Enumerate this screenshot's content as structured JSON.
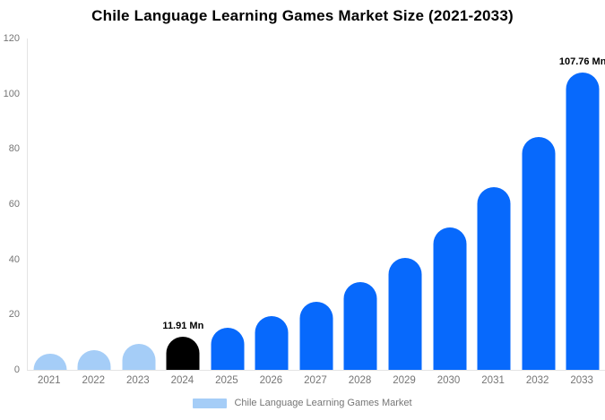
{
  "chart_data": {
    "type": "bar",
    "title": "Chile Language Learning Games Market Size (2021-2033)",
    "categories": [
      "2021",
      "2022",
      "2023",
      "2024",
      "2025",
      "2026",
      "2027",
      "2028",
      "2029",
      "2030",
      "2031",
      "2032",
      "2033"
    ],
    "values": [
      5.71,
      7.3,
      9.32,
      11.91,
      15.21,
      19.43,
      24.82,
      31.7,
      40.49,
      51.72,
      66.06,
      84.37,
      107.76
    ],
    "bar_colors": [
      "#a5cdf7",
      "#a5cdf7",
      "#a5cdf7",
      "#000000",
      "#0769fc",
      "#0769fc",
      "#0769fc",
      "#0769fc",
      "#0769fc",
      "#0769fc",
      "#0769fc",
      "#0769fc",
      "#0769fc"
    ],
    "annotations": [
      {
        "category_index": 3,
        "label": "11.91 Mn"
      },
      {
        "category_index": 12,
        "label": "107.76 Mn"
      }
    ],
    "xlabel": "",
    "ylabel": "",
    "ylim": [
      0,
      120
    ],
    "yticks": [
      0,
      20,
      40,
      60,
      80,
      100,
      120
    ],
    "grid": false,
    "legend": [
      "Chile Language Learning Games Market"
    ],
    "legend_position": "bottom"
  },
  "colors": {
    "bar_default": "#0769fc",
    "bar_early_years": "#a5cdf7",
    "bar_highlight": "#000000",
    "axis_line": "#e4e4e4",
    "tick_text": "#757575",
    "title_text": "#000000",
    "legend_swatch": "#a5cdf7"
  }
}
